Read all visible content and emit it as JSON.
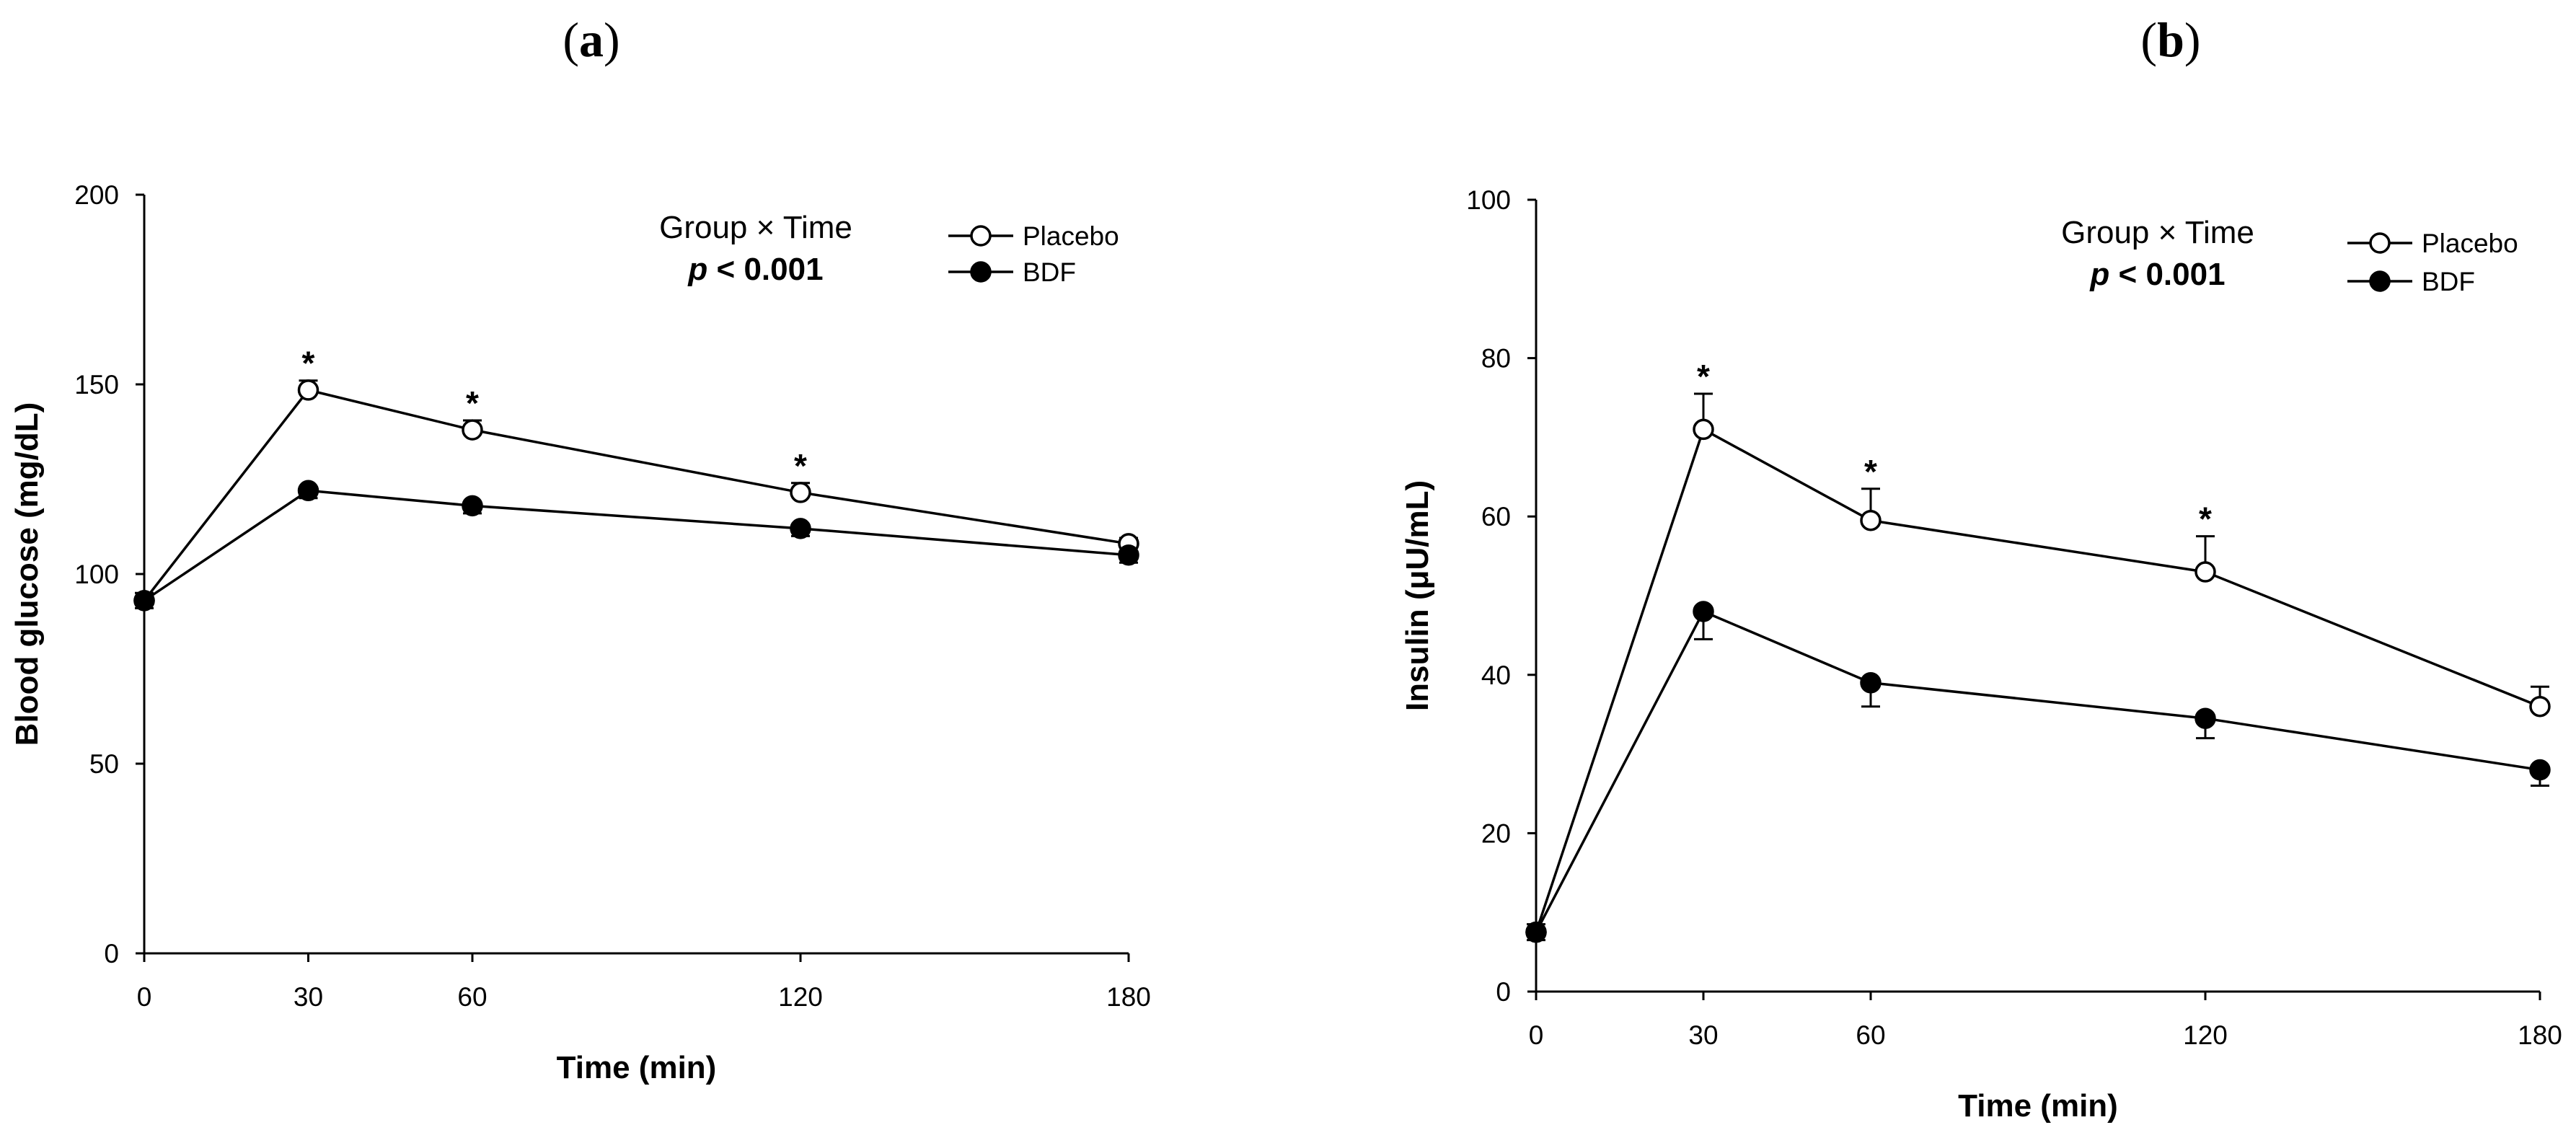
{
  "chart_data": [
    {
      "type": "line",
      "panel_label": "a",
      "xlabel": "Time (min)",
      "ylabel": "Blood glucose (mg/dL)",
      "x": [
        0,
        30,
        60,
        120,
        180
      ],
      "xticks": [
        "0",
        "30",
        "60",
        "120",
        "180"
      ],
      "xlim": [
        0,
        180
      ],
      "ylim": [
        0,
        200
      ],
      "yticks": [
        "0",
        "50",
        "100",
        "150",
        "200"
      ],
      "annotation": {
        "title": "Group × Time",
        "p_italic": "p",
        "p_rest": " < 0.001"
      },
      "series": [
        {
          "name": "Placebo",
          "marker": "open-circle",
          "values": [
            93,
            148.5,
            138,
            121.5,
            108
          ],
          "errors": [
            2,
            2.5,
            2.5,
            2.5,
            1.5
          ]
        },
        {
          "name": "BDF",
          "marker": "filled-circle",
          "values": [
            93,
            122,
            118,
            112,
            105
          ],
          "errors": [
            2,
            2,
            2,
            2,
            2
          ]
        }
      ],
      "significance_marks": [
        {
          "x": 30,
          "label": "*"
        },
        {
          "x": 60,
          "label": "*"
        },
        {
          "x": 120,
          "label": "*"
        }
      ]
    },
    {
      "type": "line",
      "panel_label": "b",
      "xlabel": "Time (min)",
      "ylabel": "Insulin (μU/mL)",
      "x": [
        0,
        30,
        60,
        120,
        180
      ],
      "xticks": [
        "0",
        "30",
        "60",
        "120",
        "180"
      ],
      "xlim": [
        0,
        180
      ],
      "ylim": [
        0,
        100
      ],
      "yticks": [
        "0",
        "20",
        "40",
        "60",
        "80",
        "100"
      ],
      "annotation": {
        "title": "Group × Time",
        "p_italic": "p",
        "p_rest": " < 0.001"
      },
      "series": [
        {
          "name": "Placebo",
          "marker": "open-circle",
          "values": [
            7.5,
            71,
            59.5,
            53,
            36
          ],
          "errors": [
            1,
            4.5,
            4,
            4.5,
            2.5
          ]
        },
        {
          "name": "BDF",
          "marker": "filled-circle",
          "values": [
            7.5,
            48,
            39,
            34.5,
            28
          ],
          "errors": [
            1,
            3.5,
            3,
            2.5,
            2
          ]
        }
      ],
      "significance_marks": [
        {
          "x": 30,
          "label": "*"
        },
        {
          "x": 60,
          "label": "*"
        },
        {
          "x": 120,
          "label": "*"
        }
      ]
    }
  ]
}
